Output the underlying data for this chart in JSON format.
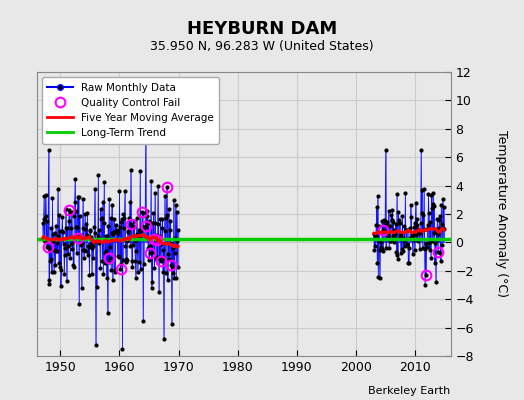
{
  "title": "HEYBURN DAM",
  "subtitle": "35.950 N, 96.283 W (United States)",
  "ylabel": "Temperature Anomaly (°C)",
  "credit": "Berkeley Earth",
  "ylim": [
    -8,
    12
  ],
  "yticks": [
    -8,
    -6,
    -4,
    -2,
    0,
    2,
    4,
    6,
    8,
    10,
    12
  ],
  "xlim": [
    1946,
    2016
  ],
  "xticks": [
    1950,
    1960,
    1970,
    1980,
    1990,
    2000,
    2010
  ],
  "background_color": "#e8e8e8",
  "plot_background": "#e8e8e8",
  "raw_line_color": "#0000ff",
  "raw_dot_color": "#000000",
  "qc_marker_color": "#ff00ff",
  "moving_avg_color": "#ff0000",
  "trend_color": "#00cc00",
  "trend_value": 0.25,
  "period1_start": 1947,
  "period1_end": 1969,
  "period2_start": 2003,
  "period2_end": 2014,
  "legend_loc": "upper left",
  "grid_color": "#cccccc"
}
